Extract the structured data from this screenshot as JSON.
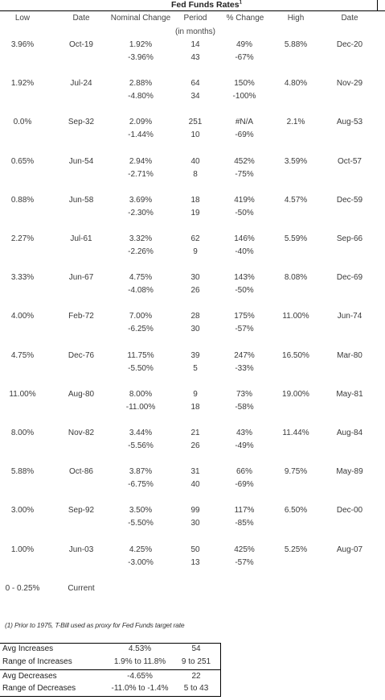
{
  "title": "Fed Funds Rates",
  "title_note_marker": "1",
  "headers": {
    "low": "Low",
    "date_low": "Date",
    "nominal_change": "Nominal Change",
    "period": "Period",
    "period_unit": "(in months)",
    "pct_change": "% Change",
    "high": "High",
    "date_high": "Date"
  },
  "rows": [
    {
      "low": "3.96%",
      "date_low": "Oct-19",
      "nom_up": "1.92%",
      "nom_down": "-3.96%",
      "period_up": "14",
      "period_down": "43",
      "pct_up": "49%",
      "pct_down": "-67%",
      "high": "5.88%",
      "date_high": "Dec-20"
    },
    {
      "low": "1.92%",
      "date_low": "Jul-24",
      "nom_up": "2.88%",
      "nom_down": "-4.80%",
      "period_up": "64",
      "period_down": "34",
      "pct_up": "150%",
      "pct_down": "-100%",
      "high": "4.80%",
      "date_high": "Nov-29"
    },
    {
      "low": "0.0%",
      "date_low": "Sep-32",
      "nom_up": "2.09%",
      "nom_down": "-1.44%",
      "period_up": "251",
      "period_down": "10",
      "pct_up": "#N/A",
      "pct_down": "-69%",
      "high": "2.1%",
      "date_high": "Aug-53"
    },
    {
      "low": "0.65%",
      "date_low": "Jun-54",
      "nom_up": "2.94%",
      "nom_down": "-2.71%",
      "period_up": "40",
      "period_down": "8",
      "pct_up": "452%",
      "pct_down": "-75%",
      "high": "3.59%",
      "date_high": "Oct-57"
    },
    {
      "low": "0.88%",
      "date_low": "Jun-58",
      "nom_up": "3.69%",
      "nom_down": "-2.30%",
      "period_up": "18",
      "period_down": "19",
      "pct_up": "419%",
      "pct_down": "-50%",
      "high": "4.57%",
      "date_high": "Dec-59"
    },
    {
      "low": "2.27%",
      "date_low": "Jul-61",
      "nom_up": "3.32%",
      "nom_down": "-2.26%",
      "period_up": "62",
      "period_down": "9",
      "pct_up": "146%",
      "pct_down": "-40%",
      "high": "5.59%",
      "date_high": "Sep-66"
    },
    {
      "low": "3.33%",
      "date_low": "Jun-67",
      "nom_up": "4.75%",
      "nom_down": "-4.08%",
      "period_up": "30",
      "period_down": "26",
      "pct_up": "143%",
      "pct_down": "-50%",
      "high": "8.08%",
      "date_high": "Dec-69"
    },
    {
      "low": "4.00%",
      "date_low": "Feb-72",
      "nom_up": "7.00%",
      "nom_down": "-6.25%",
      "period_up": "28",
      "period_down": "30",
      "pct_up": "175%",
      "pct_down": "-57%",
      "high": "11.00%",
      "date_high": "Jun-74"
    },
    {
      "low": "4.75%",
      "date_low": "Dec-76",
      "nom_up": "11.75%",
      "nom_down": "-5.50%",
      "period_up": "39",
      "period_down": "5",
      "pct_up": "247%",
      "pct_down": "-33%",
      "high": "16.50%",
      "date_high": "Mar-80"
    },
    {
      "low": "11.00%",
      "date_low": "Aug-80",
      "nom_up": "8.00%",
      "nom_down": "-11.00%",
      "period_up": "9",
      "period_down": "18",
      "pct_up": "73%",
      "pct_down": "-58%",
      "high": "19.00%",
      "date_high": "May-81"
    },
    {
      "low": "8.00%",
      "date_low": "Nov-82",
      "nom_up": "3.44%",
      "nom_down": "-5.56%",
      "period_up": "21",
      "period_down": "26",
      "pct_up": "43%",
      "pct_down": "-49%",
      "high": "11.44%",
      "date_high": "Aug-84"
    },
    {
      "low": "5.88%",
      "date_low": "Oct-86",
      "nom_up": "3.87%",
      "nom_down": "-6.75%",
      "period_up": "31",
      "period_down": "40",
      "pct_up": "66%",
      "pct_down": "-69%",
      "high": "9.75%",
      "date_high": "May-89"
    },
    {
      "low": "3.00%",
      "date_low": "Sep-92",
      "nom_up": "3.50%",
      "nom_down": "-5.50%",
      "period_up": "99",
      "period_down": "30",
      "pct_up": "117%",
      "pct_down": "-85%",
      "high": "6.50%",
      "date_high": "Dec-00"
    },
    {
      "low": "1.00%",
      "date_low": "Jun-03",
      "nom_up": "4.25%",
      "nom_down": "-3.00%",
      "period_up": "50",
      "period_down": "13",
      "pct_up": "425%",
      "pct_down": "-57%",
      "high": "5.25%",
      "date_high": "Aug-07"
    },
    {
      "low": "0 - 0.25%",
      "date_low": "Current",
      "nom_up": "",
      "nom_down": "",
      "period_up": "",
      "period_down": "",
      "pct_up": "",
      "pct_down": "",
      "high": "",
      "date_high": ""
    }
  ],
  "footnote": "(1) Prior to 1975, T-Bill used as proxy for Fed Funds target rate",
  "summary": [
    {
      "label": "Avg Increases",
      "change": "4.53%",
      "period": "54"
    },
    {
      "label": "Range of Increases",
      "change": "1.9% to 11.8%",
      "period": "9 to 251"
    },
    {
      "label": "Avg Decreases",
      "change": "-4.65%",
      "period": "22"
    },
    {
      "label": "Range of Decreases",
      "change": "-11.0% to -1.4%",
      "period": "5 to 43"
    }
  ]
}
